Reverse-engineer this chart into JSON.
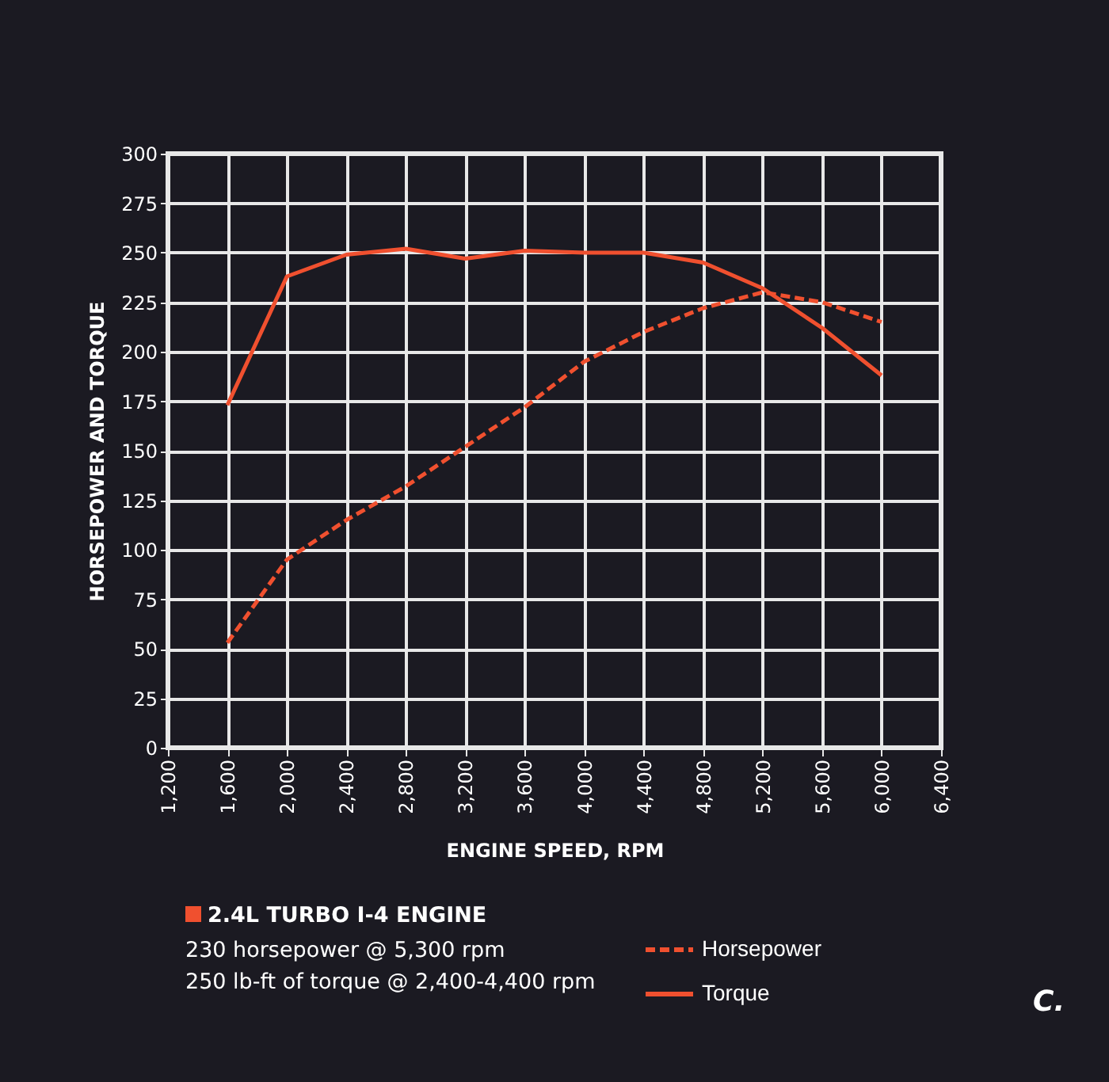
{
  "chart_data": {
    "type": "line",
    "xlabel": "ENGINE SPEED, RPM",
    "ylabel": "HORSEPOWER AND TORQUE",
    "x": [
      1600,
      2000,
      2400,
      2800,
      3200,
      3600,
      4000,
      4400,
      4800,
      5200,
      5600,
      6000
    ],
    "series": [
      {
        "name": "Horsepower",
        "color": "#f0502f",
        "line_style": "dashed",
        "values": [
          53,
          95,
          115,
          132,
          152,
          172,
          195,
          210,
          222,
          230,
          225,
          215
        ]
      },
      {
        "name": "Torque",
        "color": "#f0502f",
        "line_style": "solid",
        "values": [
          173,
          238,
          249,
          252,
          247,
          251,
          250,
          250,
          245,
          232,
          212,
          188
        ]
      }
    ],
    "xlim": [
      1200,
      6400
    ],
    "xticks": [
      {
        "value": 1200,
        "label": "1,200"
      },
      {
        "value": 1600,
        "label": "1,600"
      },
      {
        "value": 2000,
        "label": "2,000"
      },
      {
        "value": 2400,
        "label": "2,400"
      },
      {
        "value": 2800,
        "label": "2,800"
      },
      {
        "value": 3200,
        "label": "3,200"
      },
      {
        "value": 3600,
        "label": "3,600"
      },
      {
        "value": 4000,
        "label": "4,000"
      },
      {
        "value": 4400,
        "label": "4,400"
      },
      {
        "value": 4800,
        "label": "4,800"
      },
      {
        "value": 5200,
        "label": "5,200"
      },
      {
        "value": 5600,
        "label": "5,600"
      },
      {
        "value": 6000,
        "label": "6,000"
      },
      {
        "value": 6400,
        "label": "6,400"
      }
    ],
    "ylim": [
      0,
      300
    ],
    "yticks": [
      0,
      25,
      50,
      75,
      100,
      125,
      150,
      175,
      200,
      225,
      250,
      275,
      300
    ],
    "grid": true,
    "legend": "bottom right",
    "marker": "none",
    "annotations": [
      "2.4L TURBO I-4 ENGINE",
      "230 horsepower @ 5,300 rpm",
      "250 lb-ft of torque @ 2,400-4,400 rpm",
      "C."
    ]
  }
}
